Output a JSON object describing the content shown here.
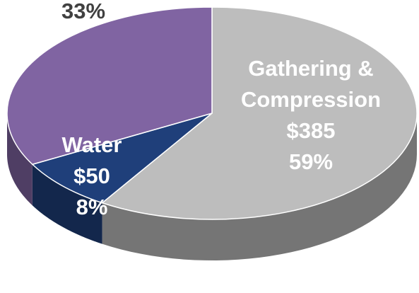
{
  "chart_data": {
    "type": "pie",
    "categories": [
      "Gathering & Compression",
      "Water",
      null
    ],
    "values": [
      59,
      8,
      33
    ],
    "value_labels": [
      "59%",
      "8%",
      "33%"
    ],
    "amount_labels": [
      "$385",
      "$50",
      null
    ],
    "colors": [
      "#bdbdbd",
      "#1f3f7a",
      "#8064a2"
    ]
  }
}
